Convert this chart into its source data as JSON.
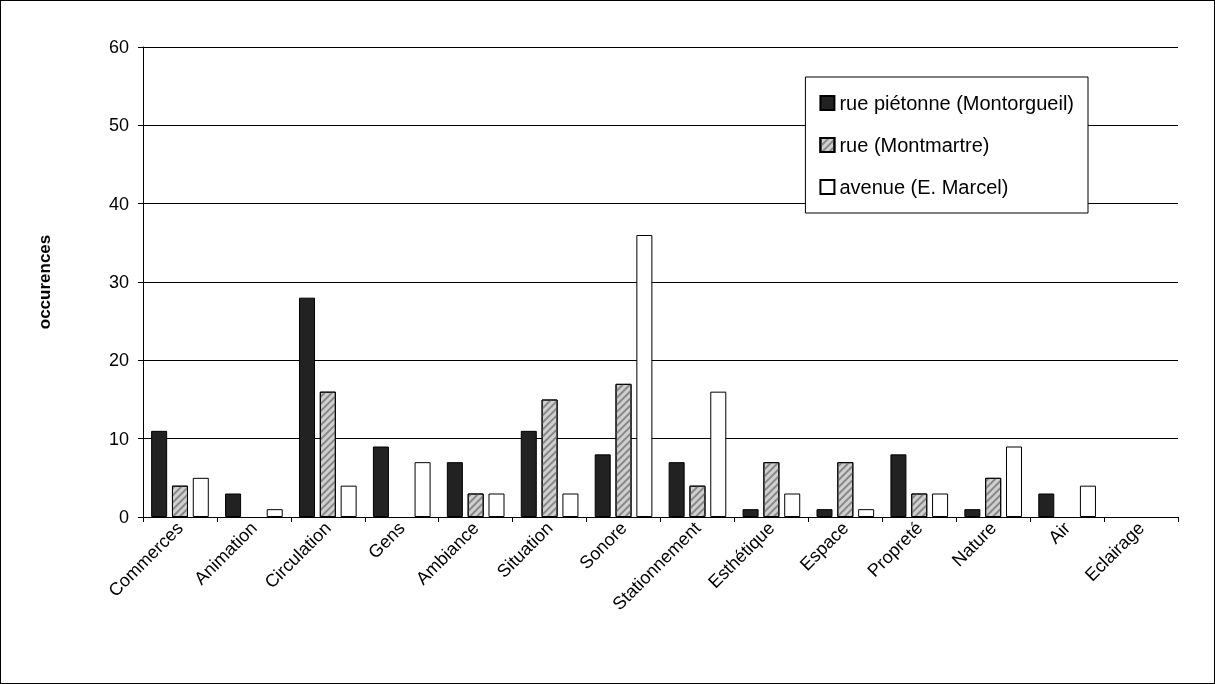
{
  "chart_data": {
    "type": "bar",
    "ylabel": "occurences",
    "categories": [
      "Commerces",
      "Animation",
      "Circulation",
      "Gens",
      "Ambiance",
      "Situation",
      "Sonore",
      "Stationnement",
      "Esthétique",
      "Espace",
      "Propreté",
      "Nature",
      "Air",
      "Eclairage"
    ],
    "series": [
      {
        "name": "rue piétonne (Montorgueil)",
        "color": "#222222",
        "values": [
          11,
          3,
          28,
          9,
          7,
          11,
          8,
          7,
          1,
          1,
          8,
          1,
          3,
          0
        ]
      },
      {
        "name": "rue (Montmartre)",
        "color": "#d0d0d0",
        "values": [
          4,
          0,
          16,
          0,
          3,
          15,
          17,
          4,
          7,
          7,
          3,
          5,
          0,
          0
        ]
      },
      {
        "name": "avenue (E. Marcel)",
        "color": "#ffffff",
        "values": [
          5,
          1,
          4,
          7,
          3,
          3,
          36,
          16,
          3,
          1,
          3,
          9,
          4,
          0
        ]
      }
    ],
    "ylim": [
      0,
      60
    ],
    "yticks": [
      0,
      10,
      20,
      30,
      40,
      50,
      60
    ],
    "grid": "y",
    "legend": "top right"
  }
}
